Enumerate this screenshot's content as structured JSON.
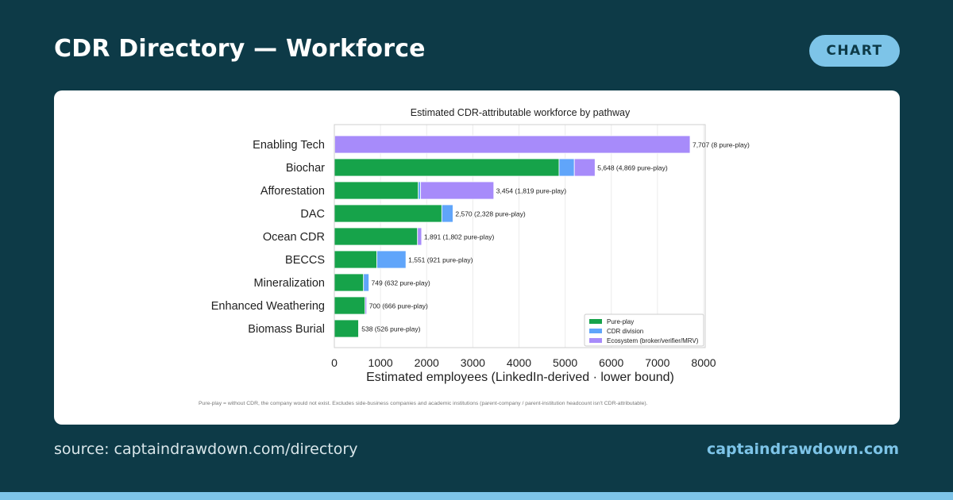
{
  "header": {
    "title": "CDR Directory — Workforce",
    "badge": "CHART"
  },
  "footer": {
    "source": "source: captaindrawdown.com/directory",
    "site": "captaindrawdown.com"
  },
  "colors": {
    "background": "#0d3a47",
    "accent": "#7dc4e8",
    "pure_play": "#16a34a",
    "cdr_division": "#60a5fa",
    "ecosystem": "#a78bfa"
  },
  "chart_data": {
    "type": "bar",
    "orientation": "horizontal",
    "stacked": true,
    "title": "Estimated CDR-attributable workforce by pathway",
    "xlabel": "Estimated employees (LinkedIn-derived · lower bound)",
    "ylabel": "",
    "xlim": [
      0,
      8000
    ],
    "xticks": [
      0,
      1000,
      2000,
      3000,
      4000,
      5000,
      6000,
      7000,
      8000
    ],
    "grid": "vertical",
    "legend_position": "bottom-right",
    "categories": [
      "Enabling Tech",
      "Biochar",
      "Afforestation",
      "DAC",
      "Ocean CDR",
      "BECCS",
      "Mineralization",
      "Enhanced Weathering",
      "Biomass Burial"
    ],
    "series": [
      {
        "name": "Pure-play",
        "color": "#16a34a",
        "values": [
          8,
          4869,
          1819,
          2328,
          1802,
          921,
          632,
          666,
          526
        ]
      },
      {
        "name": "CDR division",
        "color": "#60a5fa",
        "values": [
          0,
          330,
          50,
          242,
          0,
          630,
          117,
          0,
          0
        ]
      },
      {
        "name": "Ecosystem (broker/verifier/MRV)",
        "color": "#a78bfa",
        "values": [
          7699,
          449,
          1585,
          0,
          89,
          0,
          0,
          34,
          12
        ]
      }
    ],
    "data_labels": [
      "7,707  (8 pure-play)",
      "5,648  (4,869 pure-play)",
      "3,454  (1,819 pure-play)",
      "2,570  (2,328 pure-play)",
      "1,891  (1,802 pure-play)",
      "1,551  (921 pure-play)",
      "749  (632 pure-play)",
      "700  (666 pure-play)",
      "538  (526 pure-play)"
    ],
    "footnote": "Pure-play = without CDR, the company would not exist.  Excludes side-business companies and academic institutions (parent-company / parent-institution headcount isn't CDR-attributable)."
  }
}
